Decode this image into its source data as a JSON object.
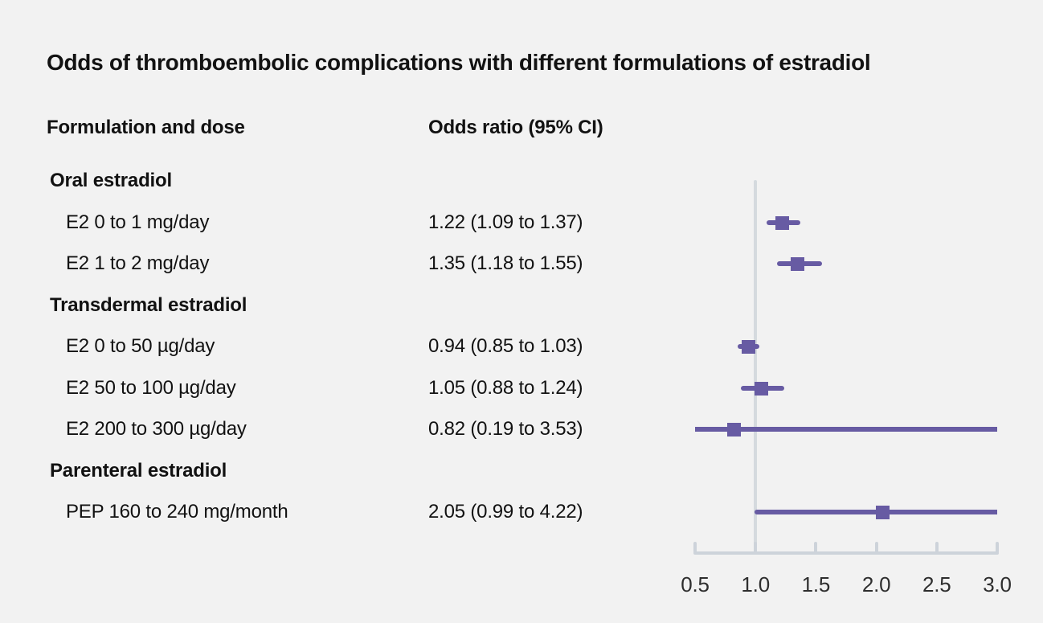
{
  "chart_data": {
    "type": "forest",
    "title": "Odds of thromboembolic complications with different formulations of estradiol",
    "column_headers": {
      "left": "Formulation and dose",
      "right": "Odds ratio (95% CI)"
    },
    "x_axis": {
      "min": 0.5,
      "max": 3.0,
      "ticks": [
        0.5,
        1.0,
        1.5,
        2.0,
        2.5,
        3.0
      ],
      "tick_labels": [
        "0.5",
        "1.0",
        "1.5",
        "2.0",
        "2.5",
        "3.0"
      ],
      "reference_line": 1.0
    },
    "rows": [
      {
        "kind": "section",
        "label": "Oral estradiol"
      },
      {
        "kind": "item",
        "label": "E2 0 to 1 mg/day",
        "display": "1.22 (1.09 to 1.37)",
        "est": 1.22,
        "lo": 1.09,
        "hi": 1.37
      },
      {
        "kind": "item",
        "label": "E2 1 to 2 mg/day",
        "display": "1.35 (1.18 to 1.55)",
        "est": 1.35,
        "lo": 1.18,
        "hi": 1.55
      },
      {
        "kind": "section",
        "label": "Transdermal estradiol"
      },
      {
        "kind": "item",
        "label": "E2 0 to 50 µg/day",
        "display": "0.94 (0.85 to 1.03)",
        "est": 0.94,
        "lo": 0.85,
        "hi": 1.03
      },
      {
        "kind": "item",
        "label": "E2 50 to 100 µg/day",
        "display": "1.05 (0.88 to 1.24)",
        "est": 1.05,
        "lo": 0.88,
        "hi": 1.24
      },
      {
        "kind": "item",
        "label": "E2 200 to 300 µg/day",
        "display": "0.82 (0.19 to 3.53)",
        "est": 0.82,
        "lo": 0.19,
        "hi": 3.53
      },
      {
        "kind": "section",
        "label": "Parenteral estradiol"
      },
      {
        "kind": "item",
        "label": "PEP 160 to 240 mg/month",
        "display": "2.05 (0.99 to 4.22)",
        "est": 2.05,
        "lo": 0.99,
        "hi": 4.22
      }
    ],
    "colors": {
      "marker": "#675ba3",
      "axis": "#cdd3da",
      "reference_line": "#d5dade",
      "text": "#121212",
      "background": "#f2f2f2"
    },
    "layout_hints": {
      "legend": "none",
      "grid": "off",
      "log_scale": false
    }
  }
}
